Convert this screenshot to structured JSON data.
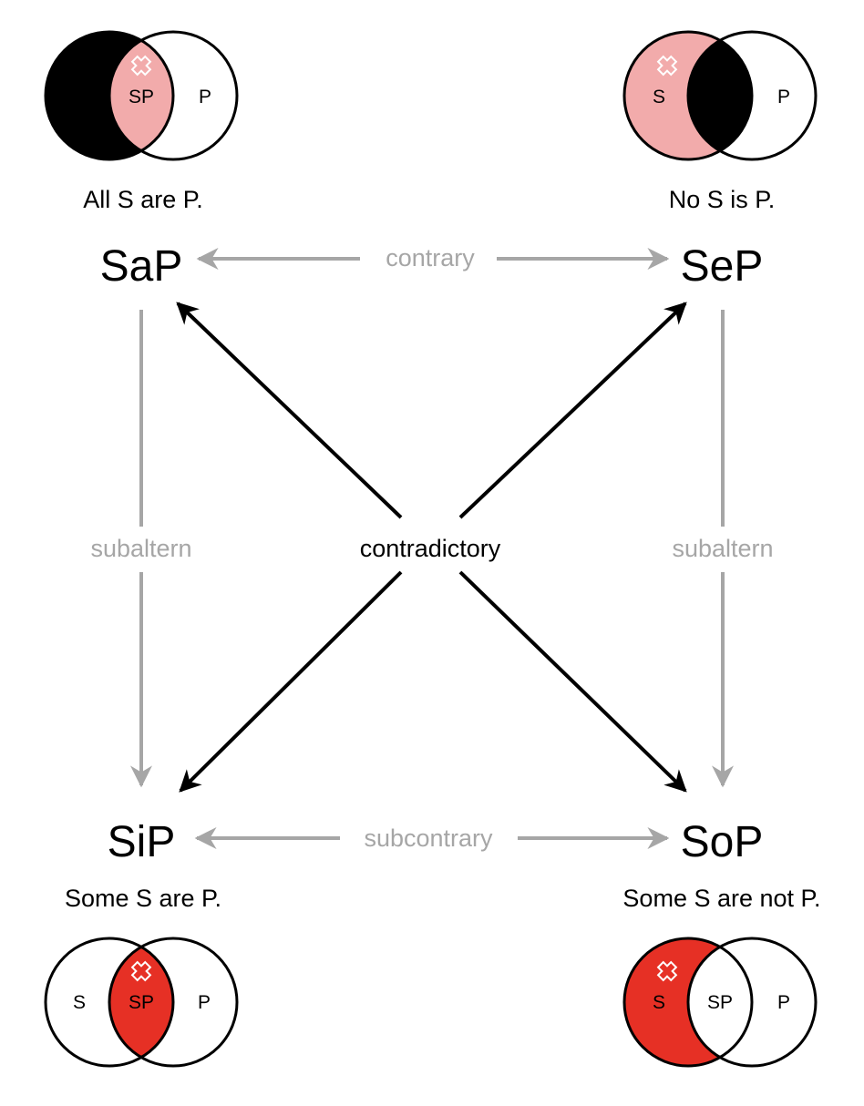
{
  "colors": {
    "black_shade": "#000000",
    "light_red": "#f2abab",
    "red": "#e63025",
    "gray_arrow": "#a6a6a6",
    "black_arrow": "#000000"
  },
  "corners": {
    "a": {
      "formula": "SaP",
      "statement": "All S are P.",
      "venn": {
        "left": "",
        "middle": "SP",
        "right": "P"
      },
      "icon": "cross-marker-icon"
    },
    "e": {
      "formula": "SeP",
      "statement": "No S is P.",
      "venn": {
        "left": "S",
        "middle": "",
        "right": "P"
      },
      "icon": "cross-marker-icon"
    },
    "i": {
      "formula": "SiP",
      "statement": "Some S are P.",
      "venn": {
        "left": "S",
        "middle": "SP",
        "right": "P"
      },
      "icon": "cross-marker-icon"
    },
    "o": {
      "formula": "SoP",
      "statement": "Some S are not P.",
      "venn": {
        "left": "S",
        "middle": "SP",
        "right": "P"
      },
      "icon": "cross-marker-icon"
    }
  },
  "relations": {
    "contrary": "contrary",
    "subcontrary": "subcontrary",
    "subaltern_left": "subaltern",
    "subaltern_right": "subaltern",
    "contradictory": "contradictory"
  }
}
